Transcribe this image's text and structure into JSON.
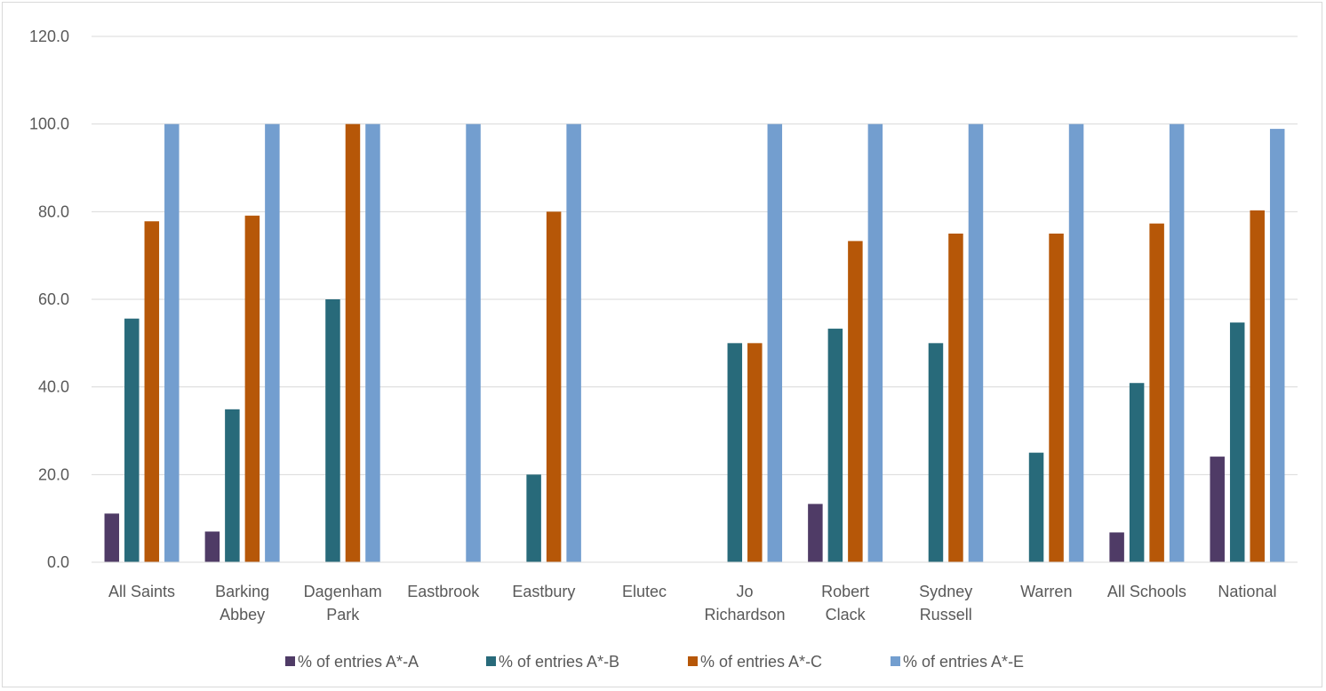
{
  "chart_data": {
    "type": "bar",
    "title": "",
    "xlabel": "",
    "ylabel": "",
    "ylim": [
      0,
      120
    ],
    "yticks": [
      0,
      20,
      40,
      60,
      80,
      100,
      120
    ],
    "ytick_labels": [
      "0.0",
      "20.0",
      "40.0",
      "60.0",
      "80.0",
      "100.0",
      "120.0"
    ],
    "grid": true,
    "legend_position": "bottom",
    "categories": [
      [
        "All Saints"
      ],
      [
        "Barking",
        "Abbey"
      ],
      [
        "Dagenham",
        "Park"
      ],
      [
        "Eastbrook"
      ],
      [
        "Eastbury"
      ],
      [
        "Elutec"
      ],
      [
        "Jo",
        "Richardson"
      ],
      [
        "Robert",
        "Clack"
      ],
      [
        "Sydney",
        "Russell"
      ],
      [
        "Warren"
      ],
      [
        "All Schools"
      ],
      [
        "National"
      ]
    ],
    "series": [
      {
        "name": "% of entries A*-A",
        "color": "#4f3b66",
        "values": [
          11.1,
          7.0,
          0,
          0,
          0,
          0,
          0,
          13.3,
          0,
          0,
          6.8,
          24.1
        ]
      },
      {
        "name": "% of entries A*-B",
        "color": "#286a7a",
        "values": [
          55.6,
          34.9,
          60.0,
          0,
          20.0,
          0,
          50.0,
          53.3,
          50.0,
          25.0,
          40.9,
          54.7
        ]
      },
      {
        "name": "% of entries A*-C",
        "color": "#b65708",
        "values": [
          77.8,
          79.1,
          100.0,
          0,
          80.0,
          0,
          50.0,
          73.3,
          75.0,
          75.0,
          77.3,
          80.3
        ]
      },
      {
        "name": "% of entries A*-E",
        "color": "#739ecf",
        "values": [
          100.0,
          100.0,
          100.0,
          100.0,
          100.0,
          0,
          100.0,
          100.0,
          100.0,
          100.0,
          100.0,
          98.9
        ]
      }
    ]
  }
}
